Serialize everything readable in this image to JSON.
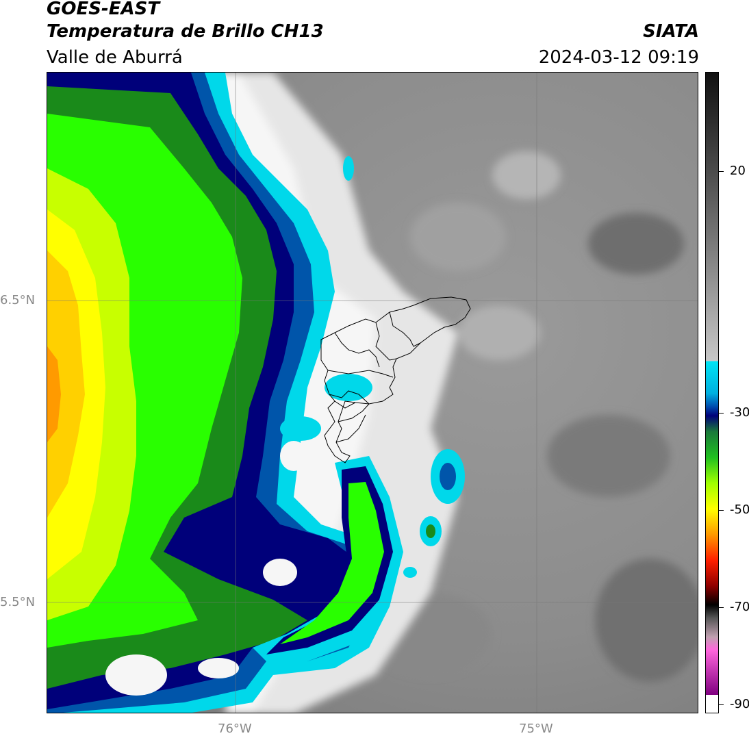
{
  "header": {
    "satellite": "GOES-EAST",
    "product": "Temperatura de Brillo CH13",
    "region": "Valle de Aburrá",
    "agency": "SIATA",
    "datetime": "2024-03-12 09:19"
  },
  "map": {
    "lat_labels": [
      "6.5°N",
      "5.5°N"
    ],
    "lon_labels": [
      "76°W",
      "75°W"
    ]
  },
  "colorbar": {
    "ticks": [
      "20",
      "-30",
      "-50",
      "-70",
      "-90"
    ],
    "colors": {
      "warm_gray_dark": "#5a5a5a",
      "gray_light": "#f2f2f2",
      "cyan": "#00d8ea",
      "navy": "#00007a",
      "green": "#29ff00",
      "yellow": "#ffff00",
      "orange": "#ff7f00",
      "red": "#ff0000",
      "black": "#000000",
      "magenta": "#ff33cc",
      "purple": "#8a0080"
    }
  }
}
